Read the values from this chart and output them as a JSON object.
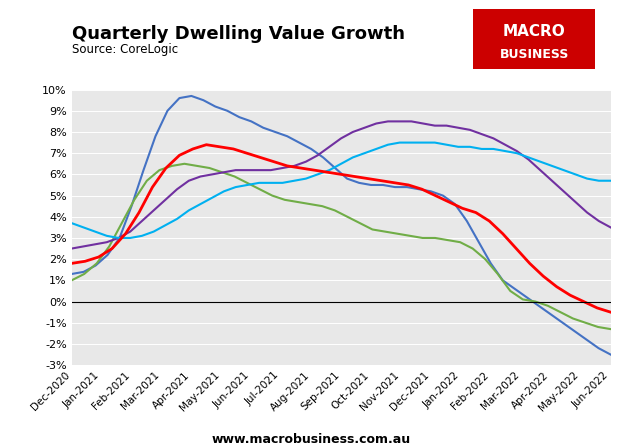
{
  "title": "Quarterly Dwelling Value Growth",
  "source": "Source: CoreLogic",
  "website": "www.macrobusiness.com.au",
  "fig_bg_color": "#ffffff",
  "plot_bg_color": "#e8e8e8",
  "ylim": [
    -0.03,
    0.1
  ],
  "yticks": [
    -0.03,
    -0.02,
    -0.01,
    0.0,
    0.01,
    0.02,
    0.03,
    0.04,
    0.05,
    0.06,
    0.07,
    0.08,
    0.09,
    0.1
  ],
  "xtick_labels": [
    "Dec-2020",
    "Jan-2021",
    "Feb-2021",
    "Mar-2021",
    "Apr-2021",
    "May-2021",
    "Jun-2021",
    "Jul-2021",
    "Aug-2021",
    "Sep-2021",
    "Oct-2021",
    "Nov-2021",
    "Dec-2021",
    "Jan-2022",
    "Feb-2022",
    "Mar-2022",
    "Apr-2022",
    "May-2022",
    "Jun-2022"
  ],
  "series": {
    "Sydney": {
      "color": "#4472C4",
      "linewidth": 1.5,
      "values": [
        0.013,
        0.014,
        0.017,
        0.022,
        0.03,
        0.045,
        0.062,
        0.078,
        0.09,
        0.096,
        0.097,
        0.095,
        0.092,
        0.09,
        0.087,
        0.085,
        0.082,
        0.08,
        0.078,
        0.075,
        0.072,
        0.068,
        0.063,
        0.058,
        0.056,
        0.055,
        0.055,
        0.054,
        0.054,
        0.053,
        0.052,
        0.05,
        0.046,
        0.038,
        0.028,
        0.018,
        0.01,
        0.006,
        0.002,
        -0.002,
        -0.006,
        -0.01,
        -0.014,
        -0.018,
        -0.022,
        -0.025
      ]
    },
    "Melbourne": {
      "color": "#70AD47",
      "linewidth": 1.5,
      "values": [
        0.01,
        0.013,
        0.018,
        0.026,
        0.037,
        0.048,
        0.057,
        0.062,
        0.064,
        0.065,
        0.064,
        0.063,
        0.061,
        0.059,
        0.056,
        0.053,
        0.05,
        0.048,
        0.047,
        0.046,
        0.045,
        0.043,
        0.04,
        0.037,
        0.034,
        0.033,
        0.032,
        0.031,
        0.03,
        0.03,
        0.029,
        0.028,
        0.025,
        0.02,
        0.013,
        0.005,
        0.001,
        0.0,
        -0.002,
        -0.005,
        -0.008,
        -0.01,
        -0.012,
        -0.013
      ]
    },
    "Brisbane": {
      "color": "#7030A0",
      "linewidth": 1.5,
      "values": [
        0.025,
        0.026,
        0.027,
        0.028,
        0.03,
        0.033,
        0.038,
        0.043,
        0.048,
        0.053,
        0.057,
        0.059,
        0.06,
        0.061,
        0.062,
        0.062,
        0.062,
        0.062,
        0.063,
        0.064,
        0.066,
        0.069,
        0.073,
        0.077,
        0.08,
        0.082,
        0.084,
        0.085,
        0.085,
        0.085,
        0.084,
        0.083,
        0.083,
        0.082,
        0.081,
        0.079,
        0.077,
        0.074,
        0.071,
        0.067,
        0.062,
        0.057,
        0.052,
        0.047,
        0.042,
        0.038,
        0.035
      ]
    },
    "Adelaide": {
      "color": "#00B0F0",
      "linewidth": 1.5,
      "values": [
        0.037,
        0.035,
        0.033,
        0.031,
        0.03,
        0.03,
        0.031,
        0.033,
        0.036,
        0.039,
        0.043,
        0.046,
        0.049,
        0.052,
        0.054,
        0.055,
        0.056,
        0.056,
        0.056,
        0.057,
        0.058,
        0.06,
        0.062,
        0.065,
        0.068,
        0.07,
        0.072,
        0.074,
        0.075,
        0.075,
        0.075,
        0.075,
        0.074,
        0.073,
        0.073,
        0.072,
        0.072,
        0.071,
        0.07,
        0.068,
        0.066,
        0.064,
        0.062,
        0.06,
        0.058,
        0.057,
        0.057
      ]
    },
    "5-City Aggregate": {
      "color": "#FF0000",
      "linewidth": 2.0,
      "values": [
        0.018,
        0.019,
        0.021,
        0.025,
        0.032,
        0.042,
        0.054,
        0.063,
        0.069,
        0.072,
        0.074,
        0.073,
        0.072,
        0.07,
        0.068,
        0.066,
        0.064,
        0.063,
        0.062,
        0.061,
        0.06,
        0.059,
        0.058,
        0.057,
        0.056,
        0.055,
        0.053,
        0.05,
        0.047,
        0.044,
        0.042,
        0.038,
        0.032,
        0.025,
        0.018,
        0.012,
        0.007,
        0.003,
        0.0,
        -0.003,
        -0.005
      ]
    }
  }
}
